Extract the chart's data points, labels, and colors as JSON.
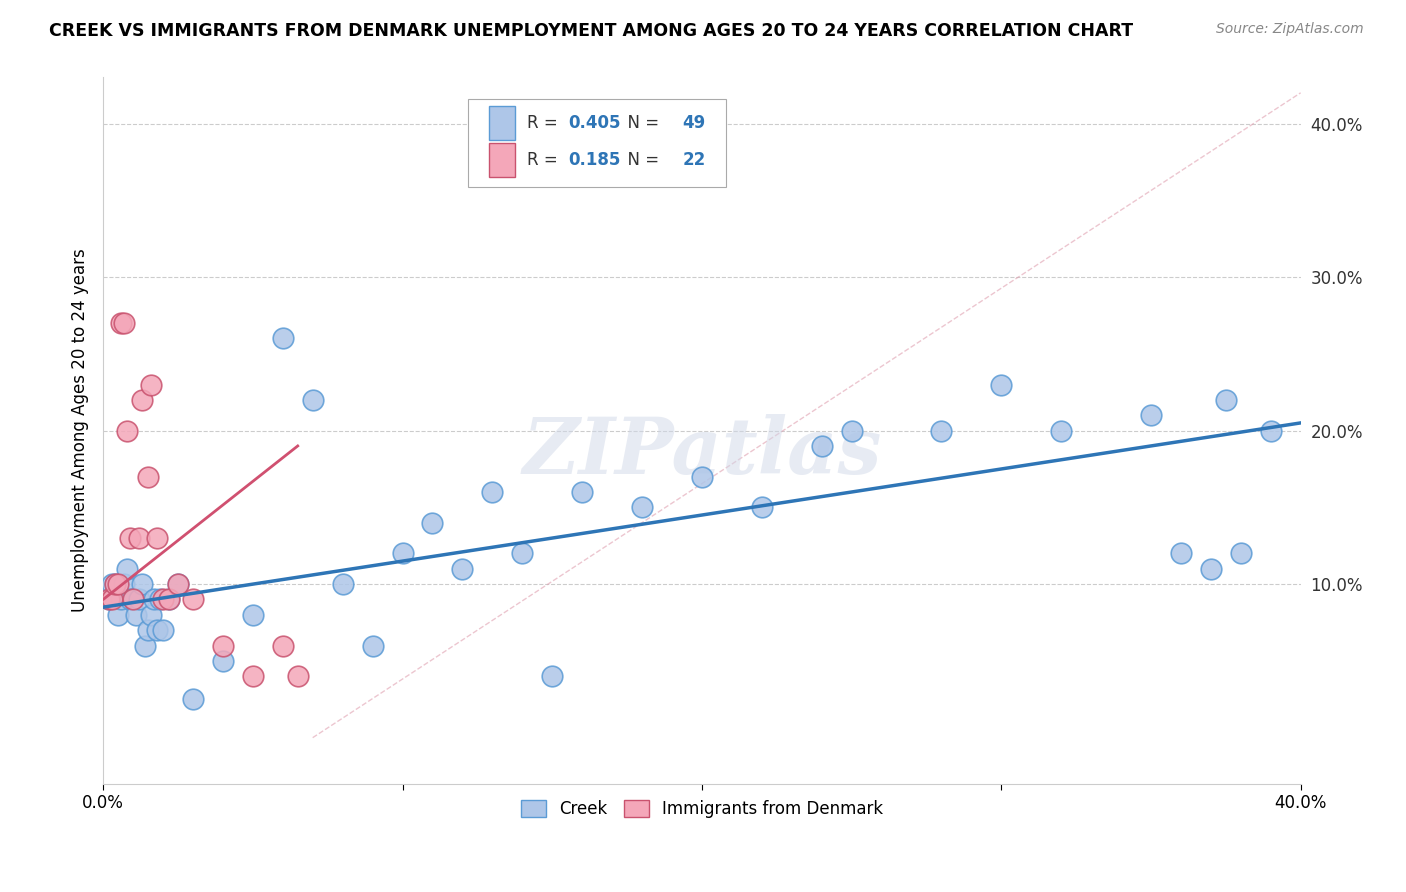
{
  "title": "CREEK VS IMMIGRANTS FROM DENMARK UNEMPLOYMENT AMONG AGES 20 TO 24 YEARS CORRELATION CHART",
  "source": "Source: ZipAtlas.com",
  "ylabel": "Unemployment Among Ages 20 to 24 years",
  "xlim": [
    0.0,
    0.4
  ],
  "ylim": [
    -0.03,
    0.43
  ],
  "xtick_positions": [
    0.0,
    0.1,
    0.2,
    0.3,
    0.4
  ],
  "xticklabels": [
    "0.0%",
    "",
    "",
    "",
    "40.0%"
  ],
  "ytick_positions": [
    0.1,
    0.2,
    0.3,
    0.4
  ],
  "ytick_labels": [
    "10.0%",
    "20.0%",
    "30.0%",
    "40.0%"
  ],
  "creek_R": 0.405,
  "creek_N": 49,
  "denmark_R": 0.185,
  "denmark_N": 22,
  "creek_color": "#aec6e8",
  "creek_edge_color": "#5b9bd5",
  "denmark_color": "#f4a7b9",
  "denmark_edge_color": "#c9526e",
  "creek_line_color": "#2e75b6",
  "denmark_line_color": "#d05070",
  "legend_label_creek": "Creek",
  "legend_label_denmark": "Immigrants from Denmark",
  "watermark": "ZIPatlas",
  "creek_x": [
    0.002,
    0.003,
    0.004,
    0.005,
    0.006,
    0.007,
    0.008,
    0.009,
    0.01,
    0.011,
    0.012,
    0.013,
    0.014,
    0.015,
    0.016,
    0.017,
    0.018,
    0.019,
    0.02,
    0.022,
    0.025,
    0.03,
    0.04,
    0.05,
    0.06,
    0.07,
    0.08,
    0.09,
    0.1,
    0.11,
    0.12,
    0.13,
    0.14,
    0.15,
    0.16,
    0.18,
    0.2,
    0.22,
    0.24,
    0.25,
    0.28,
    0.3,
    0.32,
    0.35,
    0.36,
    0.37,
    0.375,
    0.38,
    0.39
  ],
  "creek_y": [
    0.09,
    0.1,
    0.1,
    0.08,
    0.09,
    0.1,
    0.11,
    0.09,
    0.09,
    0.08,
    0.09,
    0.1,
    0.06,
    0.07,
    0.08,
    0.09,
    0.07,
    0.09,
    0.07,
    0.09,
    0.1,
    0.025,
    0.05,
    0.08,
    0.26,
    0.22,
    0.1,
    0.06,
    0.12,
    0.14,
    0.11,
    0.16,
    0.12,
    0.04,
    0.16,
    0.15,
    0.17,
    0.15,
    0.19,
    0.2,
    0.2,
    0.23,
    0.2,
    0.21,
    0.12,
    0.11,
    0.22,
    0.12,
    0.2
  ],
  "denmark_x": [
    0.002,
    0.003,
    0.004,
    0.005,
    0.006,
    0.007,
    0.008,
    0.009,
    0.01,
    0.012,
    0.013,
    0.015,
    0.016,
    0.018,
    0.02,
    0.022,
    0.025,
    0.03,
    0.04,
    0.05,
    0.06,
    0.065
  ],
  "denmark_y": [
    0.09,
    0.09,
    0.1,
    0.1,
    0.27,
    0.27,
    0.2,
    0.13,
    0.09,
    0.13,
    0.22,
    0.17,
    0.23,
    0.13,
    0.09,
    0.09,
    0.1,
    0.09,
    0.06,
    0.04,
    0.06,
    0.04
  ],
  "creek_line_x0": 0.0,
  "creek_line_x1": 0.4,
  "creek_line_y0": 0.085,
  "creek_line_y1": 0.205,
  "denmark_line_x0": 0.0,
  "denmark_line_x1": 0.065,
  "denmark_line_y0": 0.09,
  "denmark_line_y1": 0.19,
  "diag_line_x0": 0.07,
  "diag_line_x1": 0.4,
  "diag_line_y0": 0.0,
  "diag_line_y1": 0.42
}
